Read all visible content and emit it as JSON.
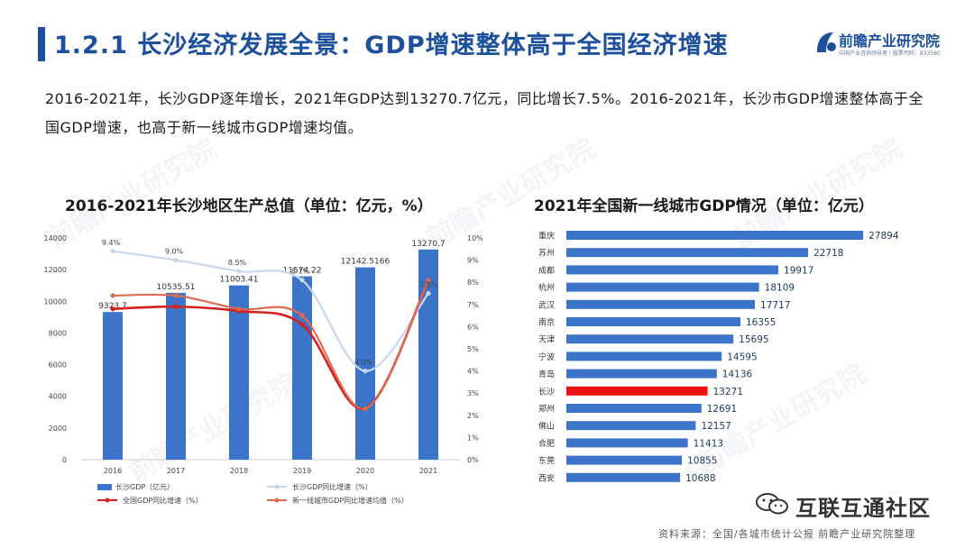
{
  "header": {
    "title": "1.2.1 长沙经济发展全景：GDP增速整体高于全国经济增速",
    "logo_main": "前瞻产业研究院",
    "logo_sub": "中国产业咨询领导者 | 股票代码：833580"
  },
  "description": "2016-2021年，长沙GDP逐年增长，2021年GDP达到13270.7亿元，同比增长7.5%。2016-2021年，长沙市GDP增速整体高于全国GDP增速，也高于新一线城市GDP增速均值。",
  "watermark": "前瞻产业研究院",
  "colors": {
    "bar": "#3b74c9",
    "changsha_growth": "#c6d7ef",
    "national_growth": "#d62020",
    "newtier_growth": "#e06a4f",
    "highlight": "#ee1111",
    "title": "#1c4f9c"
  },
  "footer": {
    "source": "资料来源：全国/各城市统计公报 前瞻产业研究院整理",
    "wechat": "互联互通社区"
  },
  "chart_data": [
    {
      "type": "bar+line",
      "title": "2016-2021年长沙地区生产总值（单位：亿元，%）",
      "categories": [
        "2016",
        "2017",
        "2018",
        "2019",
        "2020",
        "2021"
      ],
      "bars": {
        "name": "长沙GDP（亿元）",
        "values": [
          9323.7,
          10535.51,
          11003.41,
          11574.22,
          12142.5166,
          13270.7
        ],
        "labels": [
          "9323.7",
          "10535.51",
          "11003.41",
          "11574.22",
          "12142.5166",
          "13270.7"
        ]
      },
      "lines": [
        {
          "name": "长沙GDP同比增速（%）",
          "values": [
            9.4,
            9.0,
            8.5,
            8.1,
            4.0,
            7.5
          ],
          "labels": [
            "9.4%",
            "9.0%",
            "8.5%",
            "8.1%",
            "4.0%",
            "7.5%"
          ]
        },
        {
          "name": "全国GDP同比增速（%）",
          "values": [
            6.8,
            6.9,
            6.7,
            6.1,
            2.3,
            8.1
          ]
        },
        {
          "name": "新一线城市GDP同比增速均值（%）",
          "values": [
            7.4,
            7.4,
            6.8,
            6.5,
            2.3,
            8.1
          ]
        }
      ],
      "y_left": {
        "min": 0,
        "max": 14000,
        "ticks": [
          "0",
          "2000",
          "4000",
          "6000",
          "8000",
          "10000",
          "12000",
          "14000"
        ]
      },
      "y_right": {
        "min": 0,
        "max": 10,
        "ticks": [
          "0%",
          "1%",
          "2%",
          "3%",
          "4%",
          "5%",
          "6%",
          "7%",
          "8%",
          "9%",
          "10%"
        ]
      },
      "legend": [
        "长沙GDP（亿元）",
        "长沙GDP同比增速（%）",
        "全国GDP同比增速（%）",
        "新一线城市GDP同比增速均值（%）"
      ]
    },
    {
      "type": "bar",
      "orientation": "horizontal",
      "title": "2021年全国新一线城市GDP情况（单位：亿元）",
      "categories": [
        "重庆",
        "苏州",
        "成都",
        "杭州",
        "武汉",
        "南京",
        "天津",
        "宁波",
        "青岛",
        "长沙",
        "郑州",
        "佛山",
        "合肥",
        "东莞",
        "西安"
      ],
      "values": [
        27894,
        22718,
        19917,
        18109,
        17717,
        16355,
        15695,
        14595,
        14136,
        13271,
        12691,
        12157,
        11413,
        10855,
        10688
      ],
      "highlight": "长沙"
    }
  ]
}
